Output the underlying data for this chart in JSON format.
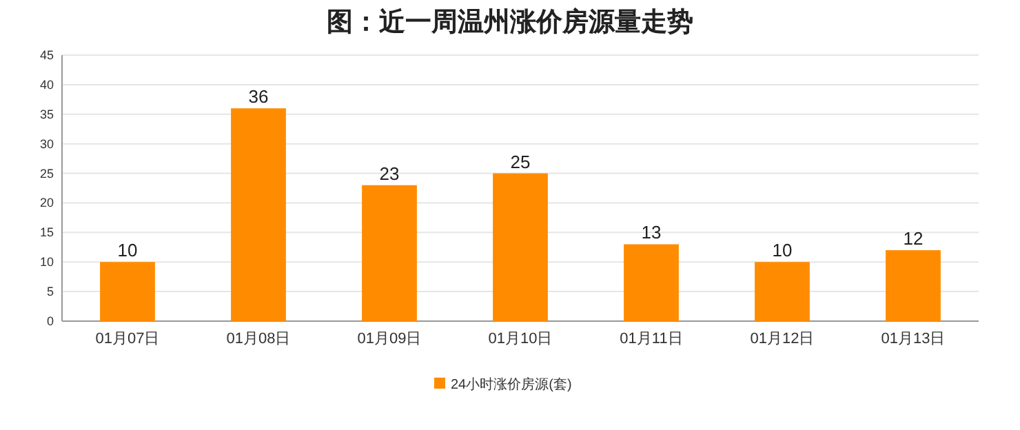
{
  "chart_data": {
    "type": "bar",
    "title": "图：近一周温州涨价房源量走势",
    "categories": [
      "01月07日",
      "01月08日",
      "01月09日",
      "01月10日",
      "01月11日",
      "01月12日",
      "01月13日"
    ],
    "series": [
      {
        "name": "24小时涨价房源(套)",
        "color": "#ff8c00",
        "values": [
          10,
          36,
          23,
          25,
          13,
          10,
          12
        ]
      }
    ],
    "ylim": [
      0,
      45
    ],
    "yticks": [
      0,
      5,
      10,
      15,
      20,
      25,
      30,
      35,
      40,
      45
    ],
    "grid": "y",
    "legend": "bottom",
    "data_labels": true
  }
}
